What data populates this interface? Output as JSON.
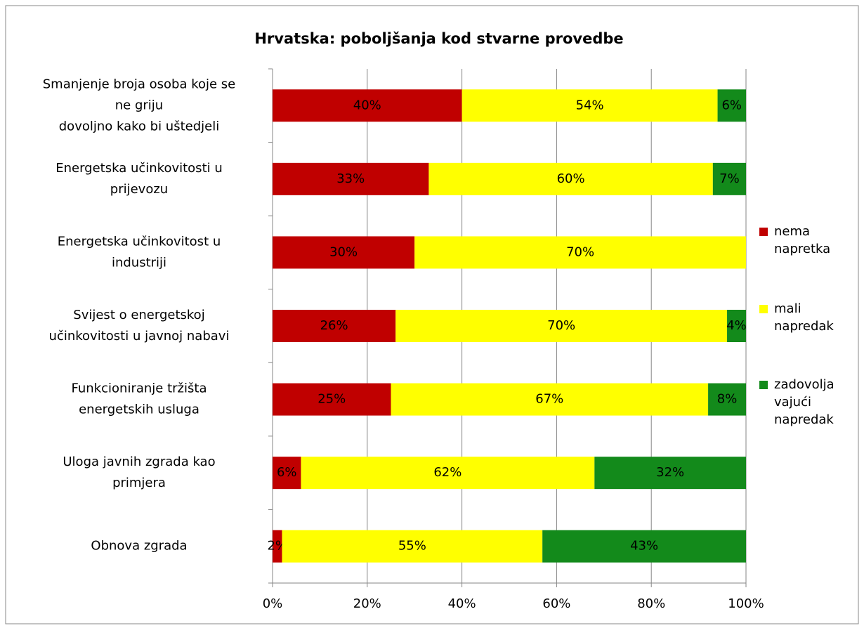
{
  "chart_data": {
    "type": "stacked-bar-horizontal",
    "title": "Hrvatska: poboljšanja kod stvarne provedbe",
    "categories": [
      [
        "Smanjenje broja osoba koje se",
        "ne griju",
        "dovoljno kako bi uštedjeli"
      ],
      [
        "Energetska učinkovitosti u",
        "prijevozu"
      ],
      [
        "Energetska učinkovitost u",
        "industriji"
      ],
      [
        "Svijest o energetskoj",
        "učinkovitosti u javnoj nabavi"
      ],
      [
        "Funkcioniranje tržišta",
        "energetskih usluga"
      ],
      [
        "Uloga javnih zgrada kao",
        "primjera"
      ],
      [
        "Obnova zgrada"
      ]
    ],
    "series": [
      {
        "name": "nema napretka",
        "color": "#c00000",
        "values": [
          40,
          33,
          30,
          26,
          25,
          6,
          2
        ],
        "value_labels": [
          "40%",
          "33%",
          "30%",
          "26%",
          "25%",
          "6%",
          "2%"
        ]
      },
      {
        "name": "mali napredak",
        "color": "#ffff00",
        "values": [
          54,
          60,
          70,
          70,
          67,
          62,
          55
        ],
        "value_labels": [
          "54%",
          "60%",
          "70%",
          "70%",
          "67%",
          "62%",
          "55%"
        ]
      },
      {
        "name": "zadovoljavajući napredak",
        "color": "#138a1b",
        "values": [
          6,
          7,
          null,
          4,
          8,
          32,
          43
        ],
        "value_labels": [
          "6%",
          "7%",
          null,
          "4%",
          "8%",
          "32%",
          "43%"
        ]
      }
    ],
    "xlim": [
      0,
      100
    ],
    "xticks": [
      {
        "value": 0,
        "label": "0%"
      },
      {
        "value": 20,
        "label": "20%"
      },
      {
        "value": 40,
        "label": "40%"
      },
      {
        "value": 60,
        "label": "60%"
      },
      {
        "value": 80,
        "label": "80%"
      },
      {
        "value": 100,
        "label": "100%"
      }
    ],
    "grid": true,
    "legend": "right"
  }
}
